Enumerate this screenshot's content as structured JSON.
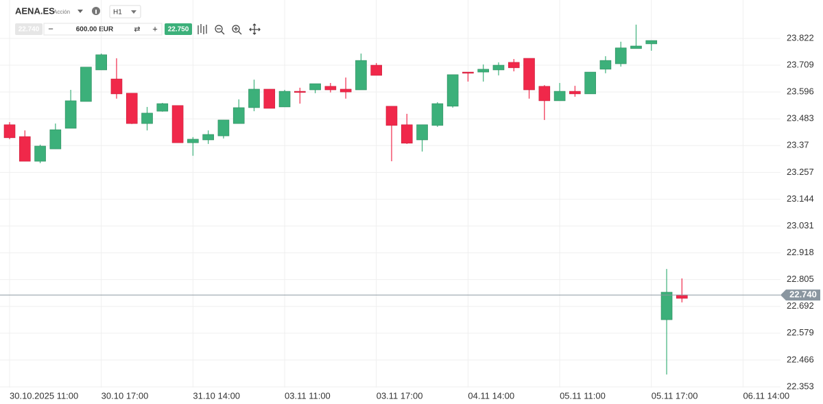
{
  "toolbar": {
    "symbol": "AENA.ES",
    "instrument_type": "Acción",
    "timeframe": "H1",
    "amount": "600.00 EUR",
    "sell_price": "22.740",
    "buy_price": "22.750"
  },
  "chart_data": {
    "type": "candlestick",
    "categories": [
      "30.10.2025 11:00",
      null,
      null,
      null,
      null,
      null,
      "30.10 17:00",
      null,
      null,
      null,
      null,
      null,
      "31.10 14:00",
      null,
      null,
      null,
      null,
      null,
      "03.11 11:00",
      null,
      null,
      null,
      null,
      null,
      "03.11 17:00",
      null,
      null,
      null,
      null,
      null,
      "04.11 14:00",
      null,
      null,
      null,
      null,
      null,
      "05.11 11:00",
      null,
      null,
      null,
      null,
      null,
      "05.11 17:00",
      null,
      null,
      null,
      null,
      null,
      "06.11 14:00"
    ],
    "open": [
      23.458,
      23.408,
      23.304,
      23.356,
      23.443,
      23.556,
      23.689,
      23.651,
      23.591,
      23.463,
      23.515,
      23.539,
      23.382,
      23.394,
      23.411,
      23.463,
      23.53,
      23.608,
      23.533,
      23.599,
      23.605,
      23.62,
      23.608,
      23.605,
      23.709,
      23.536,
      23.458,
      23.394,
      23.455,
      23.536,
      23.68,
      23.68,
      23.689,
      23.721,
      23.738,
      23.62,
      23.559,
      23.599,
      23.588,
      23.692,
      23.715,
      23.779,
      23.799,
      22.636,
      22.74,
      null,
      null,
      null,
      null
    ],
    "high": [
      23.469,
      23.434,
      23.374,
      23.463,
      23.605,
      23.701,
      23.758,
      23.738,
      23.591,
      23.533,
      23.55,
      23.539,
      23.406,
      23.434,
      23.478,
      23.565,
      23.648,
      23.608,
      23.605,
      23.614,
      23.631,
      23.634,
      23.657,
      23.758,
      23.718,
      23.536,
      23.504,
      23.458,
      23.553,
      23.669,
      23.68,
      23.712,
      23.721,
      23.735,
      23.738,
      23.625,
      23.634,
      23.622,
      23.68,
      23.747,
      23.808,
      23.88,
      23.813,
      22.85,
      22.81,
      null,
      null,
      null,
      null
    ],
    "low": [
      23.397,
      23.304,
      23.296,
      23.356,
      23.443,
      23.556,
      23.689,
      23.568,
      23.461,
      23.434,
      23.513,
      23.382,
      23.327,
      23.377,
      23.4,
      23.463,
      23.515,
      23.527,
      23.533,
      23.547,
      23.591,
      23.594,
      23.568,
      23.605,
      23.666,
      23.304,
      23.377,
      23.345,
      23.449,
      23.53,
      23.64,
      23.64,
      23.666,
      23.683,
      23.568,
      23.478,
      23.559,
      23.576,
      23.588,
      23.675,
      23.703,
      23.779,
      23.77,
      22.405,
      22.709,
      null,
      null,
      null,
      null
    ],
    "close": [
      23.403,
      23.304,
      23.368,
      23.437,
      23.559,
      23.701,
      23.753,
      23.588,
      23.463,
      23.507,
      23.547,
      23.382,
      23.397,
      23.417,
      23.478,
      23.53,
      23.608,
      23.527,
      23.599,
      23.594,
      23.631,
      23.605,
      23.596,
      23.729,
      23.666,
      23.455,
      23.38,
      23.458,
      23.547,
      23.669,
      23.675,
      23.692,
      23.709,
      23.698,
      23.605,
      23.559,
      23.599,
      23.588,
      23.68,
      23.729,
      23.782,
      23.79,
      23.813,
      22.752,
      22.726,
      null,
      null,
      null,
      null
    ],
    "up_color": "#3cb07a",
    "down_color": "#f0284a",
    "ylim": [
      22.35,
      23.926
    ],
    "yticks": [
      23.822,
      23.709,
      23.596,
      23.483,
      23.37,
      23.257,
      23.144,
      23.031,
      22.918,
      22.805,
      22.692,
      22.579,
      22.466,
      22.353
    ],
    "current_price": {
      "value": 22.74,
      "label": "22.740"
    },
    "grid": true
  }
}
